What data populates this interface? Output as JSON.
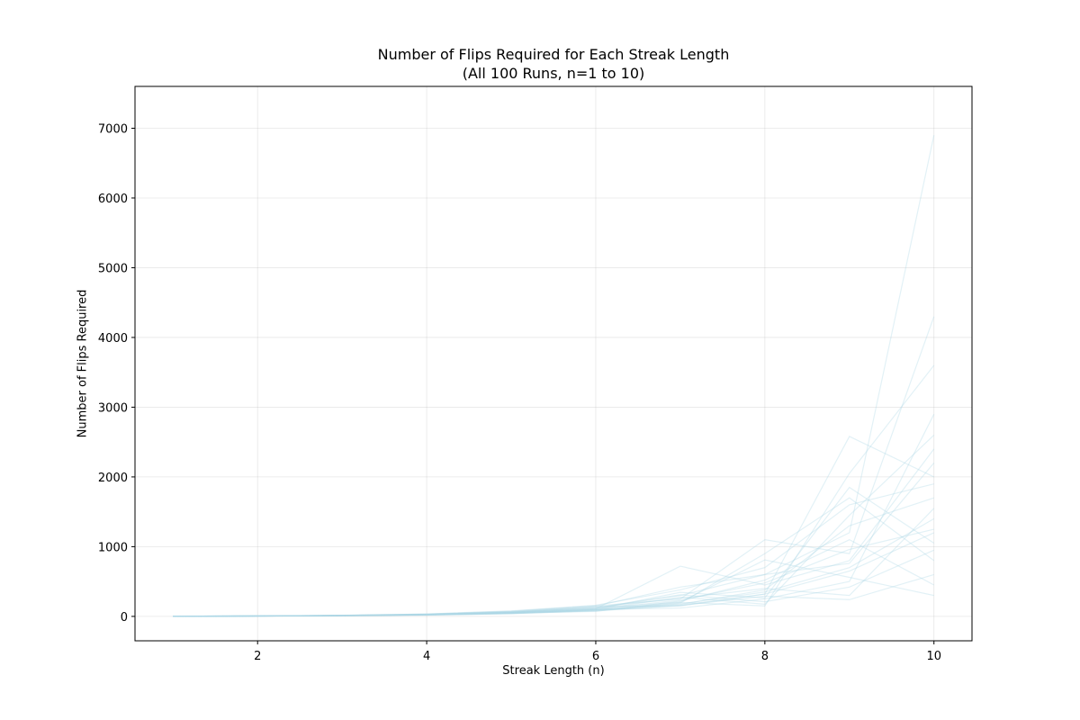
{
  "chart_data": {
    "type": "line",
    "title": "Number of Flips Required for Each Streak Length",
    "subtitle": "(All 100 Runs, n=1 to 10)",
    "xlabel": "Streak Length (n)",
    "ylabel": "Number of Flips Required",
    "x": [
      1,
      2,
      3,
      4,
      5,
      6,
      7,
      8,
      9,
      10
    ],
    "xlim": [
      0.55,
      10.45
    ],
    "ylim": [
      -350,
      7600
    ],
    "xticks": [
      2,
      4,
      6,
      8,
      10
    ],
    "yticks": [
      0,
      1000,
      2000,
      3000,
      4000,
      5000,
      6000,
      7000
    ],
    "grid": true,
    "line_color": "#add8e6",
    "series": [
      {
        "values": [
          2,
          5,
          11,
          20,
          45,
          95,
          180,
          350,
          700,
          1400
        ]
      },
      {
        "values": [
          2,
          6,
          14,
          30,
          60,
          120,
          300,
          600,
          1200,
          6900
        ]
      },
      {
        "values": [
          1,
          4,
          9,
          18,
          40,
          80,
          160,
          320,
          2580,
          2000
        ]
      },
      {
        "values": [
          2,
          6,
          15,
          32,
          70,
          150,
          250,
          1100,
          900,
          4300
        ]
      },
      {
        "values": [
          2,
          7,
          13,
          25,
          55,
          110,
          720,
          450,
          800,
          2400
        ]
      },
      {
        "values": [
          1,
          5,
          12,
          28,
          50,
          90,
          200,
          150,
          2050,
          3600
        ]
      },
      {
        "values": [
          3,
          8,
          16,
          35,
          80,
          160,
          380,
          700,
          1600,
          1900
        ]
      },
      {
        "values": [
          2,
          4,
          10,
          22,
          48,
          100,
          120,
          250,
          500,
          2900
        ]
      },
      {
        "values": [
          1,
          5,
          11,
          24,
          52,
          70,
          220,
          520,
          1100,
          450
        ]
      },
      {
        "values": [
          2,
          6,
          14,
          26,
          58,
          130,
          260,
          400,
          300,
          1550
        ]
      },
      {
        "values": [
          2,
          5,
          13,
          30,
          66,
          140,
          150,
          320,
          650,
          1200
        ]
      },
      {
        "values": [
          1,
          7,
          12,
          20,
          42,
          85,
          190,
          900,
          1700,
          800
        ]
      },
      {
        "values": [
          2,
          6,
          12,
          26,
          62,
          125,
          310,
          210,
          420,
          950
        ]
      },
      {
        "values": [
          3,
          5,
          10,
          24,
          44,
          92,
          170,
          380,
          1300,
          1700
        ]
      },
      {
        "values": [
          1,
          6,
          15,
          34,
          74,
          148,
          420,
          600,
          760,
          2200
        ]
      },
      {
        "values": [
          2,
          4,
          9,
          19,
          39,
          78,
          155,
          290,
          240,
          600
        ]
      },
      {
        "values": [
          2,
          7,
          14,
          27,
          57,
          104,
          232,
          480,
          960,
          1250
        ]
      },
      {
        "values": [
          1,
          5,
          11,
          23,
          51,
          96,
          276,
          175,
          1450,
          2600
        ]
      },
      {
        "values": [
          2,
          6,
          13,
          29,
          63,
          118,
          205,
          810,
          560,
          300
        ]
      },
      {
        "values": [
          2,
          5,
          12,
          25,
          49,
          102,
          345,
          265,
          1850,
          1050
        ]
      }
    ]
  }
}
